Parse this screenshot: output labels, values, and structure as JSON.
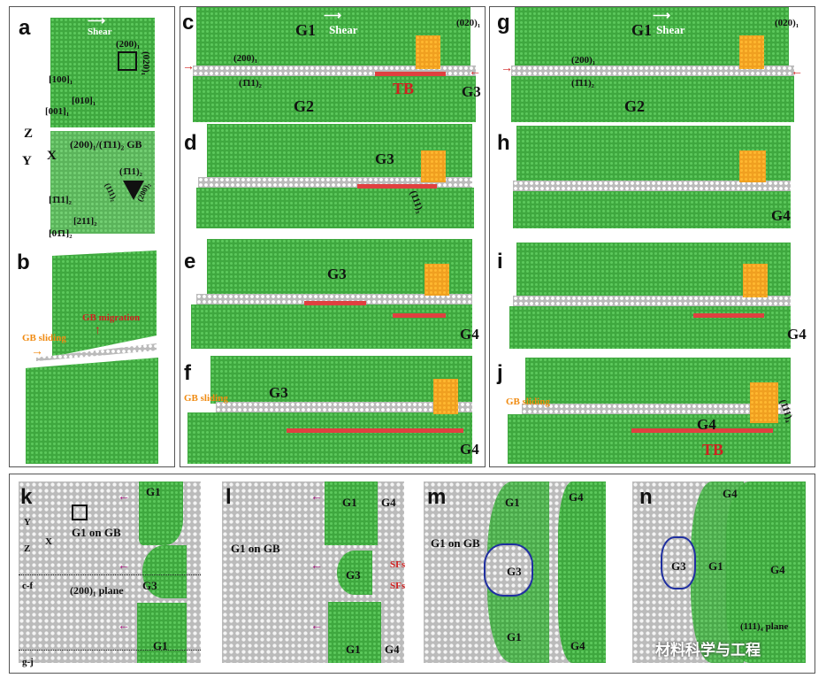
{
  "panels": {
    "a": "a",
    "b": "b",
    "c": "c",
    "d": "d",
    "e": "e",
    "f": "f",
    "g": "g",
    "h": "h",
    "i": "i",
    "j": "j",
    "k": "k",
    "l": "l",
    "m": "m",
    "n": "n"
  },
  "panel_a": {
    "shear": "Shear",
    "plane1": "(200)₁",
    "plane2": "(020)₁",
    "dir_up": "[100]₁",
    "dir_right": "[010]₁",
    "dir_out": "[001]₁",
    "axis_z": "Z",
    "axis_x": "X",
    "axis_y": "Y",
    "gb_label": "(200)₁/(1̄11)₂ GB",
    "tri_top": "(1̄11)₂",
    "tri_left": "(111)₂",
    "tri_right": "(200)₂",
    "dir2_up": "[1̄11]₂",
    "dir2_right": "[211]₂",
    "dir2_out": "[01̄1]₂"
  },
  "panel_b": {
    "gb_migration": "GB migration",
    "gb_sliding": "GB sliding"
  },
  "panel_c": {
    "g1": "G1",
    "shear": "Shear",
    "plane200": "(200)₁",
    "plane020": "(020)₁",
    "plane111": "(1̄11)₂",
    "tb": "TB",
    "g3": "G3",
    "g2": "G2"
  },
  "panel_d": {
    "g3": "G3",
    "plane": "(111)₃"
  },
  "panel_e": {
    "g3": "G3",
    "g4": "G4"
  },
  "panel_f": {
    "gb_sliding": "GB sliding",
    "g3": "G3",
    "g4": "G4"
  },
  "panel_g": {
    "g1": "G1",
    "shear": "Shear",
    "plane200": "(200)₁",
    "plane020": "(020)₁",
    "plane111": "(1̄11)₂",
    "g2": "G2"
  },
  "panel_h": {
    "g4": "G4"
  },
  "panel_i": {
    "g4": "G4"
  },
  "panel_j": {
    "gb_sliding": "GB sliding",
    "g4": "G4",
    "tb": "TB",
    "plane": "(111)₄"
  },
  "panel_k": {
    "g1_top": "G1",
    "g1_on_gb": "G1 on GB",
    "axis_y": "Y",
    "axis_x": "X",
    "axis_z": "Z",
    "plane": "(200)₁ plane",
    "g3": "G3",
    "g1_bottom": "G1",
    "cf": "c-f",
    "gj": "g-j"
  },
  "panel_l": {
    "g1_top": "G1",
    "g4_top": "G4",
    "g1_on_gb": "G1 on GB",
    "g3": "G3",
    "sf1": "SFs",
    "sf2": "SFs",
    "g1_bottom": "G1",
    "g4_bottom": "G4"
  },
  "panel_m": {
    "g1_top": "G1",
    "g4_top": "G4",
    "g1_on_gb": "G1 on GB",
    "g3": "G3",
    "g1_bottom": "G1",
    "g4_bottom": "G4"
  },
  "panel_n": {
    "g4_top": "G4",
    "g3": "G3",
    "g1": "G1",
    "g4": "G4",
    "plane": "(111)₄ plane"
  },
  "watermark": "材料科学与工程"
}
